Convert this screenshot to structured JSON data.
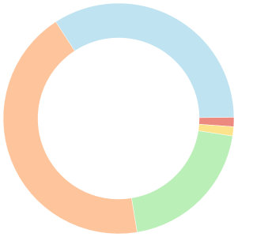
{
  "chart_data": {
    "type": "doughnut",
    "values": [
      34,
      1.3,
      1.3,
      20,
      43.4
    ],
    "colors": [
      "#bfe3f0",
      "#ec8a7f",
      "#fde38c",
      "#bbefb8",
      "#fec59c"
    ]
  }
}
